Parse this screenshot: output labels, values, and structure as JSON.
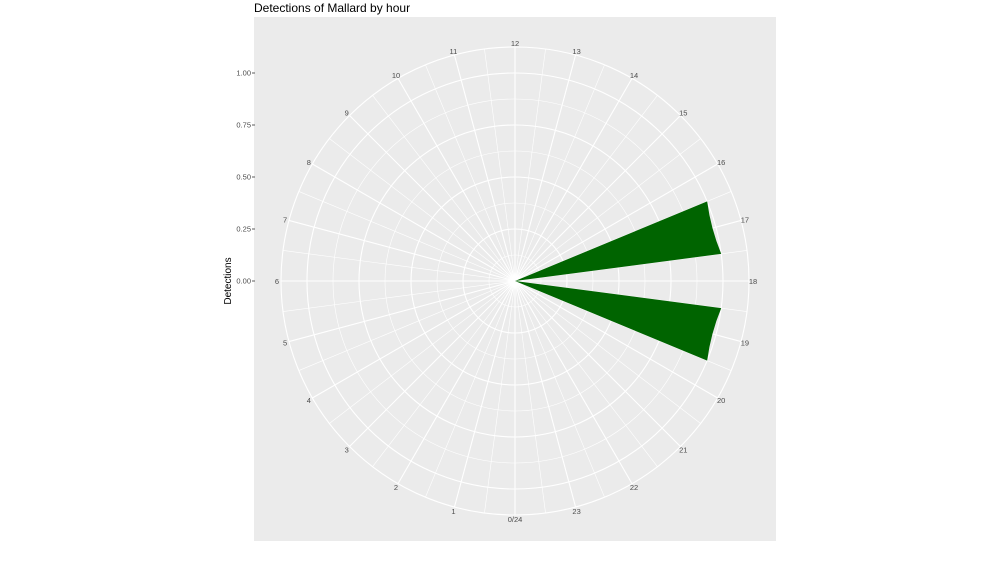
{
  "chart_data": {
    "type": "bar",
    "coord": "polar",
    "title": "Detections of Mallard by hour",
    "ylabel": "Detections",
    "xlabel": "",
    "categories": [
      "0/24",
      "1",
      "2",
      "3",
      "4",
      "5",
      "6",
      "7",
      "8",
      "9",
      "10",
      "11",
      "12",
      "13",
      "14",
      "15",
      "16",
      "17",
      "18",
      "19",
      "20",
      "21",
      "22",
      "23"
    ],
    "values": [
      0,
      0,
      0,
      0,
      0,
      0,
      0,
      0,
      0,
      0,
      0,
      0,
      0,
      0,
      0,
      0,
      0,
      1,
      0,
      1,
      0,
      0,
      0,
      0
    ],
    "yticks": [
      "0.00",
      "0.25",
      "0.50",
      "0.75",
      "1.00"
    ],
    "ylim": [
      0,
      1
    ],
    "grid": true,
    "colors": {
      "bar": "#006400",
      "panel": "#ebebeb",
      "grid": "#ffffff"
    }
  }
}
